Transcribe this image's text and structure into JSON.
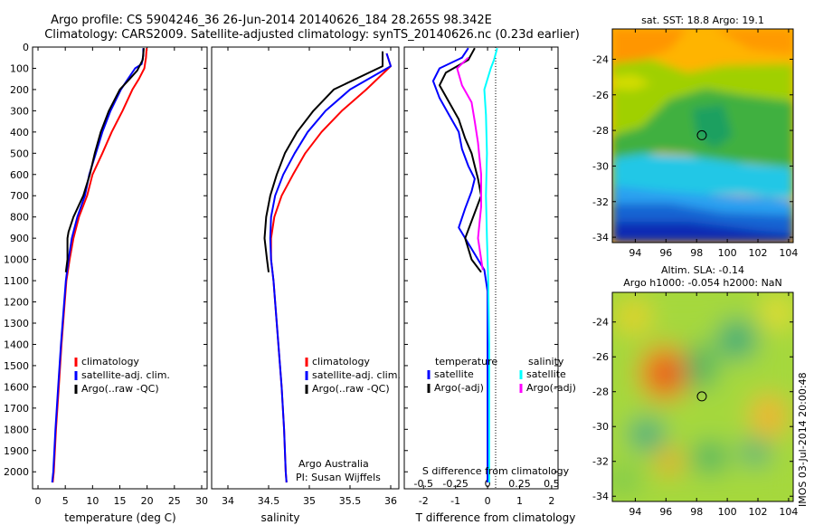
{
  "title": {
    "line1": "Argo profile: CS 5904246_36 26-Jun-2014 20140626_184 28.265S 98.342E",
    "line2": "Climatology: CARS2009. Satellite-adjusted climatology: synTS_20140626.nc (0.23d earlier)"
  },
  "stamp": "IMOS 03-Jul-2014 20:00:48",
  "colors": {
    "clim": "#ff0000",
    "sat": "#0000ff",
    "argo": "#000000",
    "sat_sal": "#00ffff",
    "argo_sal": "#ff00ff"
  },
  "chart_data": [
    {
      "id": "temperature",
      "type": "line",
      "xlabel": "temperature (deg C)",
      "xlim": [
        -1,
        31
      ],
      "ylim": [
        2080,
        0
      ],
      "xticks": [
        0,
        5,
        10,
        15,
        20,
        25,
        30
      ],
      "yticks": [
        0,
        100,
        200,
        300,
        400,
        500,
        600,
        700,
        800,
        900,
        1000,
        1100,
        1200,
        1300,
        1400,
        1500,
        1600,
        1700,
        1800,
        1900,
        2000
      ],
      "legend": [
        "climatology",
        "satellite-adj. clim.",
        "Argo(..raw -QC)"
      ],
      "series": [
        {
          "name": "climatology",
          "color": "clim",
          "points": [
            [
              19.9,
              5
            ],
            [
              19.8,
              50
            ],
            [
              19.5,
              100
            ],
            [
              18.5,
              150
            ],
            [
              17.3,
              200
            ],
            [
              15.5,
              300
            ],
            [
              13.5,
              400
            ],
            [
              11.8,
              500
            ],
            [
              10.0,
              600
            ],
            [
              9.0,
              700
            ],
            [
              7.5,
              800
            ],
            [
              6.5,
              900
            ],
            [
              5.8,
              1000
            ],
            [
              5.2,
              1100
            ],
            [
              4.9,
              1200
            ],
            [
              4.3,
              1400
            ],
            [
              3.8,
              1600
            ],
            [
              3.3,
              1800
            ],
            [
              2.9,
              2000
            ],
            [
              2.7,
              2050
            ]
          ]
        },
        {
          "name": "satellite-adj. clim.",
          "color": "sat",
          "points": [
            [
              19.3,
              5
            ],
            [
              19.3,
              40
            ],
            [
              19.0,
              80
            ],
            [
              17.8,
              100
            ],
            [
              16.5,
              150
            ],
            [
              15.2,
              200
            ],
            [
              13.3,
              300
            ],
            [
              11.8,
              400
            ],
            [
              10.6,
              500
            ],
            [
              9.4,
              600
            ],
            [
              8.6,
              700
            ],
            [
              7.2,
              800
            ],
            [
              6.2,
              900
            ],
            [
              5.6,
              1000
            ],
            [
              5.1,
              1100
            ],
            [
              4.8,
              1200
            ],
            [
              4.2,
              1400
            ],
            [
              3.7,
              1600
            ],
            [
              3.2,
              1800
            ],
            [
              2.8,
              2000
            ],
            [
              2.6,
              2050
            ]
          ]
        },
        {
          "name": "Argo(..raw -QC)",
          "color": "argo",
          "points": [
            [
              19.4,
              5
            ],
            [
              19.2,
              60
            ],
            [
              18.2,
              110
            ],
            [
              16.8,
              150
            ],
            [
              15.0,
              200
            ],
            [
              13.0,
              300
            ],
            [
              11.5,
              400
            ],
            [
              10.4,
              500
            ],
            [
              9.5,
              600
            ],
            [
              8.3,
              700
            ],
            [
              6.5,
              800
            ],
            [
              5.6,
              870
            ],
            [
              5.4,
              900
            ],
            [
              5.4,
              1000
            ],
            [
              5.1,
              1060
            ]
          ]
        }
      ]
    },
    {
      "id": "salinity",
      "type": "line",
      "xlabel": "salinity",
      "xlim": [
        33.8,
        36.1
      ],
      "ylim": [
        2080,
        0
      ],
      "xticks": [
        34,
        34.5,
        35,
        35.5,
        36
      ],
      "xticklabels": [
        "34",
        "34.5",
        "35",
        "35.5",
        "36"
      ],
      "legend": [
        "climatology",
        "satellite-adj. clim.",
        "Argo(..raw -QC)"
      ],
      "annotation": [
        "Argo Australia",
        "PI: Susan Wijffels"
      ],
      "series": [
        {
          "name": "climatology",
          "color": "clim",
          "points": [
            [
              35.95,
              30
            ],
            [
              36.0,
              90
            ],
            [
              35.7,
              200
            ],
            [
              35.4,
              300
            ],
            [
              35.15,
              400
            ],
            [
              34.95,
              500
            ],
            [
              34.8,
              600
            ],
            [
              34.66,
              700
            ],
            [
              34.57,
              800
            ],
            [
              34.53,
              900
            ],
            [
              34.53,
              1000
            ],
            [
              34.56,
              1100
            ],
            [
              34.58,
              1200
            ],
            [
              34.62,
              1400
            ],
            [
              34.66,
              1600
            ],
            [
              34.69,
              1800
            ],
            [
              34.71,
              2000
            ],
            [
              34.72,
              2050
            ]
          ]
        },
        {
          "name": "satellite-adj. clim.",
          "color": "sat",
          "points": [
            [
              35.95,
              30
            ],
            [
              36.0,
              90
            ],
            [
              35.5,
              200
            ],
            [
              35.2,
              300
            ],
            [
              34.98,
              400
            ],
            [
              34.82,
              500
            ],
            [
              34.68,
              600
            ],
            [
              34.58,
              700
            ],
            [
              34.53,
              800
            ],
            [
              34.52,
              900
            ],
            [
              34.53,
              1000
            ],
            [
              34.56,
              1100
            ],
            [
              34.58,
              1200
            ],
            [
              34.62,
              1400
            ],
            [
              34.66,
              1600
            ],
            [
              34.69,
              1800
            ],
            [
              34.71,
              2000
            ],
            [
              34.72,
              2050
            ]
          ]
        },
        {
          "name": "Argo(..raw -QC)",
          "color": "argo",
          "points": [
            [
              35.9,
              20
            ],
            [
              35.9,
              90
            ],
            [
              35.3,
              200
            ],
            [
              35.05,
              300
            ],
            [
              34.85,
              400
            ],
            [
              34.7,
              500
            ],
            [
              34.6,
              600
            ],
            [
              34.52,
              700
            ],
            [
              34.47,
              800
            ],
            [
              34.45,
              900
            ],
            [
              34.48,
              1000
            ],
            [
              34.5,
              1060
            ]
          ]
        }
      ]
    },
    {
      "id": "difference",
      "type": "line",
      "xlabel": "T difference from climatology",
      "xlabel_top": "S difference from climatology",
      "xlim": [
        -2.6,
        2.2
      ],
      "ylim": [
        2080,
        0
      ],
      "xticks": [
        -2,
        -1,
        0,
        1,
        2
      ],
      "sticks": [
        -0.5,
        -0.25,
        0,
        0.25,
        0.5
      ],
      "sticklabels": [
        "-0.5",
        "-0.25",
        "0",
        "0.25",
        "0.5"
      ],
      "legend_headers": [
        "temperature",
        "salinity"
      ],
      "legend": [
        "satellite",
        "Argo(-adj)",
        "satellite",
        "Argo(-adj)"
      ],
      "series": [
        {
          "name": "T satellite",
          "color": "sat",
          "points": [
            [
              -0.6,
              5
            ],
            [
              -0.8,
              50
            ],
            [
              -1.5,
              100
            ],
            [
              -1.7,
              160
            ],
            [
              -1.5,
              240
            ],
            [
              -1.2,
              320
            ],
            [
              -0.9,
              400
            ],
            [
              -0.8,
              480
            ],
            [
              -0.6,
              560
            ],
            [
              -0.4,
              620
            ],
            [
              -0.5,
              680
            ],
            [
              -0.7,
              760
            ],
            [
              -0.9,
              850
            ],
            [
              -0.5,
              950
            ],
            [
              -0.1,
              1050
            ],
            [
              0,
              1150
            ],
            [
              0,
              2050
            ]
          ]
        },
        {
          "name": "T Argo(-adj)",
          "color": "argo",
          "points": [
            [
              -0.4,
              5
            ],
            [
              -0.6,
              60
            ],
            [
              -1.3,
              120
            ],
            [
              -1.5,
              180
            ],
            [
              -1.2,
              260
            ],
            [
              -0.9,
              340
            ],
            [
              -0.7,
              430
            ],
            [
              -0.5,
              500
            ],
            [
              -0.4,
              560
            ],
            [
              -0.3,
              620
            ],
            [
              -0.2,
              700
            ],
            [
              -0.4,
              780
            ],
            [
              -0.7,
              900
            ],
            [
              -0.5,
              1000
            ],
            [
              -0.2,
              1060
            ]
          ]
        },
        {
          "name": "S satellite",
          "color": "sat_sal",
          "points": [
            [
              0.3,
              5
            ],
            [
              0.2,
              60
            ],
            [
              0.1,
              100
            ],
            [
              -0.1,
              200
            ],
            [
              -0.05,
              320
            ],
            [
              -0.02,
              500
            ],
            [
              -0.05,
              700
            ],
            [
              -0.02,
              900
            ],
            [
              0.02,
              1100
            ],
            [
              0.05,
              1400
            ],
            [
              0.05,
              2050
            ]
          ]
        },
        {
          "name": "S Argo(-adj)",
          "color": "argo_sal",
          "points": [
            [
              -0.6,
              50
            ],
            [
              -0.95,
              100
            ],
            [
              -0.8,
              180
            ],
            [
              -0.5,
              260
            ],
            [
              -0.4,
              350
            ],
            [
              -0.3,
              450
            ],
            [
              -0.2,
              600
            ],
            [
              -0.2,
              750
            ],
            [
              -0.3,
              900
            ],
            [
              -0.15,
              1050
            ]
          ]
        }
      ]
    },
    {
      "id": "sst_map",
      "type": "heatmap",
      "title": "sat. SST: 18.8 Argo: 19.1",
      "xlim": [
        92.5,
        104.3
      ],
      "ylim": [
        -34.3,
        -22.3
      ],
      "xticks": [
        94,
        96,
        98,
        100,
        102,
        104
      ],
      "yticks": [
        -24,
        -26,
        -28,
        -30,
        -32,
        -34
      ],
      "marker": [
        98.34,
        -28.27
      ]
    },
    {
      "id": "sla_map",
      "type": "heatmap",
      "title": "Altim. SLA: -0.14",
      "subtitle": "Argo h1000: -0.054 h2000: NaN",
      "xlim": [
        92.5,
        104.3
      ],
      "ylim": [
        -34.3,
        -22.3
      ],
      "xticks": [
        94,
        96,
        98,
        100,
        102,
        104
      ],
      "yticks": [
        -24,
        -26,
        -28,
        -30,
        -32,
        -34
      ],
      "marker": [
        98.34,
        -28.27
      ]
    }
  ]
}
